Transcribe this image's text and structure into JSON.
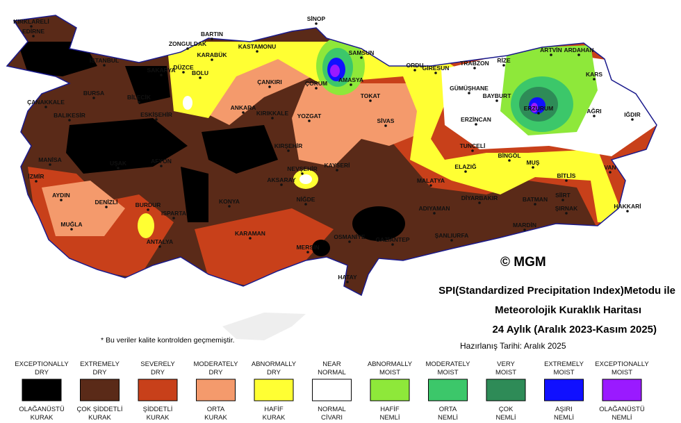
{
  "title": {
    "line1": "SPI(Standardized Precipitation Index)Metodu ile",
    "line2": "Meteorolojik Kuraklık Haritası",
    "line3": "24 Aylık (Aralık 2023-Kasım 2025)",
    "date": "Hazırlanış Tarihi: Aralık 2025"
  },
  "copyright": "© MGM",
  "note": "* Bu veriler kalite kontrolden geçmemiştir.",
  "map": {
    "cities": [
      "KIRKLARELİ",
      "EDİRNE",
      "İSTANBUL",
      "ZONGULDAK",
      "BARTIN",
      "KARABÜK",
      "KASTAMONU",
      "SİNOP",
      "SAMSUN",
      "ORDU",
      "GİRESUN",
      "TRABZON",
      "RİZE",
      "ARTVİN",
      "ARDAHAN",
      "KARS",
      "AMASYA",
      "ÇORUM",
      "TOKAT",
      "ÇANKIRI",
      "BOLU",
      "DÜZCE",
      "SAKARYA",
      "ÇANAKKALE",
      "BALIKESİR",
      "BURSA",
      "BİLECİK",
      "ESKİŞEHİR",
      "ANKARA",
      "KIRIKKALE",
      "YOZGAT",
      "SİVAS",
      "GÜMÜŞHANE",
      "BAYBURT",
      "ERZURUM",
      "AĞRI",
      "IĞDIR",
      "ERZİNCAN",
      "MANİSA",
      "İZMİR",
      "UŞAK",
      "AFYON",
      "KIRŞEHİR",
      "NEVŞEHİR",
      "KAYSERİ",
      "AKSARAY",
      "TUNCELİ",
      "ELAZIĞ",
      "BİNGÖL",
      "MUŞ",
      "BİTLİS",
      "VAN",
      "MALATYA",
      "AYDIN",
      "DENİZLİ",
      "BURDUR",
      "ISPARTA",
      "KONYA",
      "NİĞDE",
      "ADIYAMAN",
      "DİYARBAKIR",
      "BATMAN",
      "SİİRT",
      "ŞIRNAK",
      "HAKKARİ",
      "MUĞLA",
      "ANTALYA",
      "KARAMAN",
      "MERSİN",
      "OSMANİYE",
      "GAZİANTEP",
      "ŞANLIURFA",
      "MARDİN",
      "HATAY"
    ]
  },
  "legend": [
    {
      "en": [
        "EXCEPTIONALLY",
        "DRY"
      ],
      "tr": [
        "OLAĞANÜSTÜ",
        "KURAK"
      ],
      "color": "#000000"
    },
    {
      "en": [
        "EXTREMELY",
        "DRY"
      ],
      "tr": [
        "ÇOK ŞİDDETLİ",
        "KURAK"
      ],
      "color": "#5a2a18"
    },
    {
      "en": [
        "SEVERELY",
        "DRY"
      ],
      "tr": [
        "ŞİDDETLİ",
        "KURAK"
      ],
      "color": "#c8401a"
    },
    {
      "en": [
        "MODERATELY",
        "DRY"
      ],
      "tr": [
        "ORTA",
        "KURAK"
      ],
      "color": "#f49a6c"
    },
    {
      "en": [
        "ABNORMALLY",
        "DRY"
      ],
      "tr": [
        "HAFİF",
        "KURAK"
      ],
      "color": "#ffff33"
    },
    {
      "en": [
        "NEAR",
        "NORMAL"
      ],
      "tr": [
        "NORMAL",
        "CİVARI"
      ],
      "color": "#ffffff"
    },
    {
      "en": [
        "ABNORMALLY",
        "MOIST"
      ],
      "tr": [
        "HAFİF",
        "NEMLİ"
      ],
      "color": "#8ee83a"
    },
    {
      "en": [
        "MODERATELY",
        "MOIST"
      ],
      "tr": [
        "ORTA",
        "NEMLİ"
      ],
      "color": "#3cc76a"
    },
    {
      "en": [
        "VERY",
        "MOIST"
      ],
      "tr": [
        "ÇOK",
        "NEMLİ"
      ],
      "color": "#2e8b57"
    },
    {
      "en": [
        "EXTREMELY",
        "MOIST"
      ],
      "tr": [
        "AŞIRI",
        "NEMLİ"
      ],
      "color": "#1010ff"
    },
    {
      "en": [
        "EXCEPTIONALLY",
        "MOIST"
      ],
      "tr": [
        "OLAĞANÜSTÜ",
        "NEMLİ"
      ],
      "color": "#9a1aff"
    }
  ]
}
